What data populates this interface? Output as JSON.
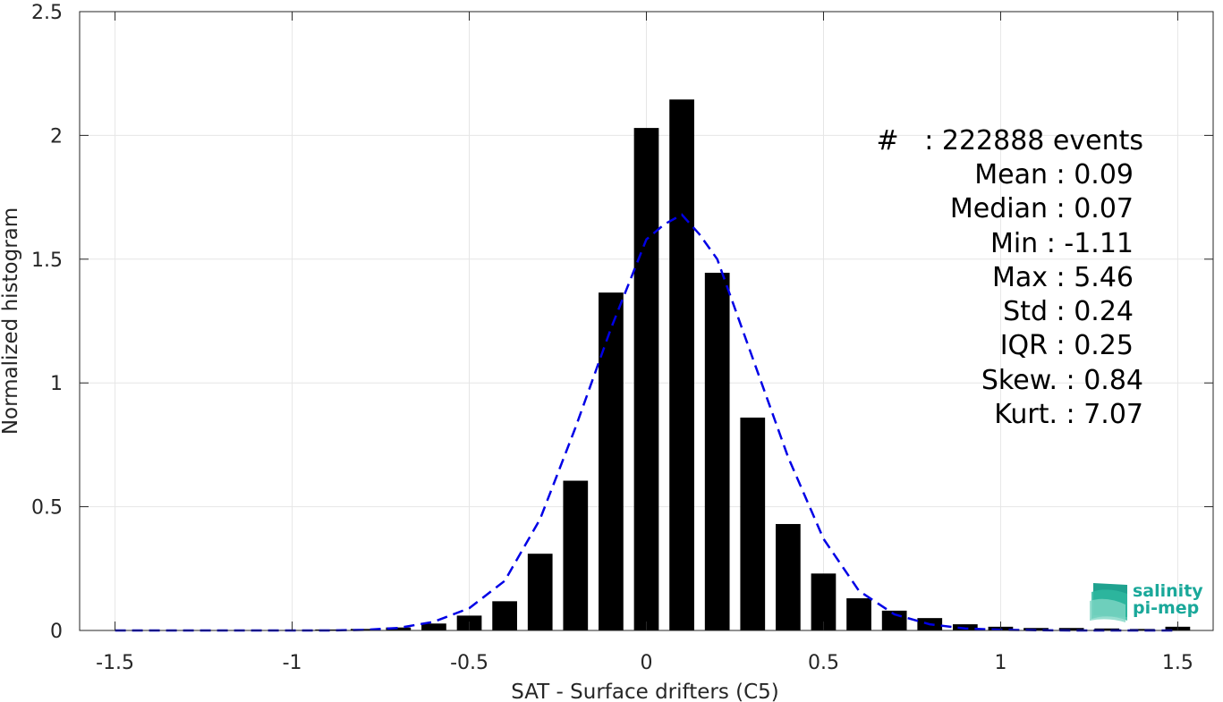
{
  "chart_data": {
    "type": "bar",
    "xlabel": "SAT - Surface drifters (C5)",
    "ylabel": "Normalized histogram",
    "xlim": [
      -1.6,
      1.6
    ],
    "ylim": [
      0,
      2.5
    ],
    "grid": true,
    "xticks": [
      -1.5,
      -1,
      -0.5,
      0,
      0.5,
      1,
      1.5
    ],
    "xtick_labels": [
      "-1.5",
      "-1",
      "-0.5",
      "0",
      "0.5",
      "1",
      "1.5"
    ],
    "yticks": [
      0,
      0.5,
      1,
      1.5,
      2,
      2.5
    ],
    "ytick_labels": [
      "0",
      "0.5",
      "1",
      "1.5",
      "2",
      "2.5"
    ],
    "bar_width": 0.07,
    "bar_color": "#000000",
    "bars": {
      "x": [
        -1.5,
        -1.4,
        -1.3,
        -1.2,
        -1.1,
        -1.0,
        -0.9,
        -0.8,
        -0.7,
        -0.6,
        -0.5,
        -0.4,
        -0.3,
        -0.2,
        -0.1,
        0.0,
        0.1,
        0.2,
        0.3,
        0.4,
        0.5,
        0.6,
        0.7,
        0.8,
        0.9,
        1.0,
        1.1,
        1.2,
        1.3,
        1.4,
        1.5
      ],
      "values": [
        0.0,
        0.0,
        0.0,
        0.0,
        0.001,
        0.002,
        0.004,
        0.006,
        0.012,
        0.028,
        0.06,
        0.118,
        0.31,
        0.605,
        1.365,
        2.03,
        2.145,
        1.445,
        0.86,
        0.43,
        0.23,
        0.13,
        0.08,
        0.05,
        0.025,
        0.015,
        0.01,
        0.01,
        0.008,
        0.006,
        0.015
      ]
    },
    "fit_curve": {
      "style": "dashed",
      "color": "#0000e6",
      "x": [
        -1.5,
        -1.4,
        -1.3,
        -1.2,
        -1.1,
        -1.0,
        -0.9,
        -0.8,
        -0.7,
        -0.6,
        -0.5,
        -0.4,
        -0.3,
        -0.2,
        -0.1,
        0.0,
        0.05,
        0.1,
        0.15,
        0.2,
        0.3,
        0.4,
        0.5,
        0.6,
        0.7,
        0.8,
        0.9,
        1.0,
        1.1,
        1.2,
        1.3,
        1.4,
        1.5
      ],
      "y": [
        0.0,
        0.0,
        0.0,
        0.0,
        0.0,
        0.0,
        0.0,
        0.002,
        0.01,
        0.035,
        0.09,
        0.2,
        0.45,
        0.82,
        1.22,
        1.58,
        1.64,
        1.68,
        1.6,
        1.5,
        1.1,
        0.7,
        0.37,
        0.16,
        0.065,
        0.025,
        0.008,
        0.003,
        0.001,
        0.0,
        0.0,
        0.0,
        0.0
      ]
    },
    "annotations": [
      "#   : 222888 events",
      "Mean : 0.09",
      "Median : 0.07",
      "Min : -1.11",
      "Max : 5.46",
      "Std : 0.24",
      "IQR : 0.25",
      "Skew. : 0.84",
      "Kurt. : 7.07"
    ]
  },
  "logo": {
    "line1": "salinity",
    "line2": "pi-mep"
  }
}
